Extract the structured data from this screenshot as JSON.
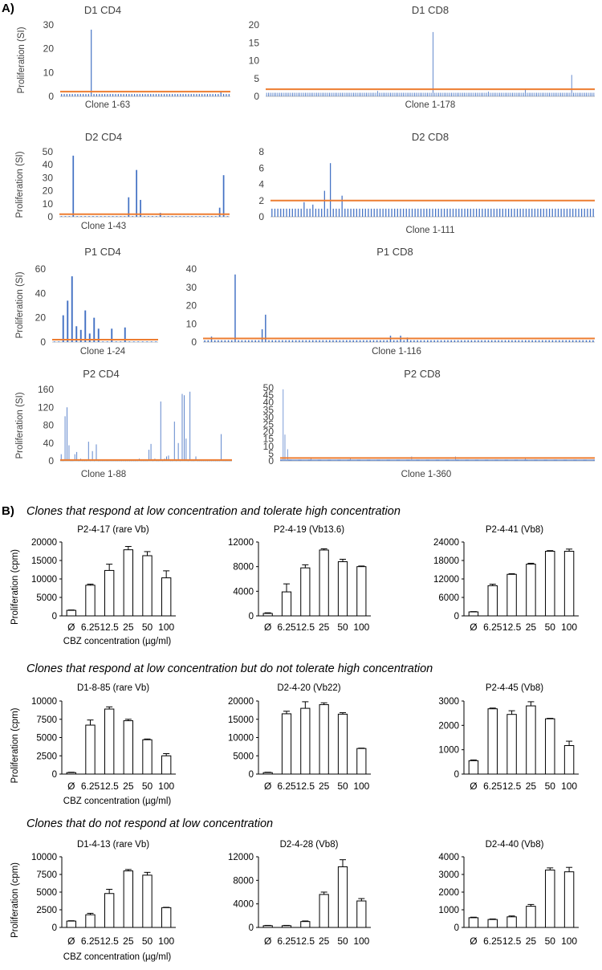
{
  "figure": {
    "panel_a_label": "A)",
    "panel_b_label": "B)",
    "colors": {
      "bar_a": "#4472c4",
      "threshold": "#ed7d31",
      "axis": "#bfbfbf",
      "text": "#404040",
      "bar_b_fill": "#ffffff",
      "bar_b_stroke": "#000000"
    }
  },
  "chart_data": [
    {
      "id": "D1-CD4",
      "type": "bar",
      "panel": "A",
      "title": "D1 CD4",
      "xlabel": "Clone 1-63",
      "ylabel": "Proliferation (SI)",
      "ylim": [
        0,
        30
      ],
      "yticks": [
        0,
        10,
        20,
        30
      ],
      "threshold": 2,
      "n": 63,
      "baseline": 1,
      "peaks": [
        [
          11,
          28
        ],
        [
          59,
          2
        ]
      ]
    },
    {
      "id": "D1-CD8",
      "type": "bar",
      "panel": "A",
      "title": "D1 CD8",
      "xlabel": "Clone 1-178",
      "ylabel": "",
      "ylim": [
        0,
        20
      ],
      "yticks": [
        0,
        5,
        10,
        15,
        20
      ],
      "threshold": 2,
      "n": 178,
      "baseline": 1,
      "peaks": [
        [
          90,
          18
        ],
        [
          165,
          6
        ],
        [
          60,
          1.5
        ],
        [
          120,
          1.3
        ],
        [
          140,
          1.8
        ]
      ]
    },
    {
      "id": "D2-CD4",
      "type": "bar",
      "panel": "A",
      "title": "D2 CD4",
      "xlabel": "Clone 1-43",
      "ylabel": "Proliferation (SI)",
      "ylim": [
        0,
        50
      ],
      "yticks": [
        0,
        10,
        20,
        30,
        40,
        50
      ],
      "threshold": 2,
      "n": 43,
      "baseline": 0.5,
      "peaks": [
        [
          3,
          47
        ],
        [
          17,
          15
        ],
        [
          19,
          36
        ],
        [
          20,
          13
        ],
        [
          40,
          7
        ],
        [
          41,
          32
        ],
        [
          25,
          3
        ]
      ]
    },
    {
      "id": "D2-CD8",
      "type": "bar",
      "panel": "A",
      "title": "D2 CD8",
      "xlabel": "Clone 1-111",
      "ylabel": "",
      "ylim": [
        0,
        8
      ],
      "yticks": [
        0,
        2,
        4,
        6,
        8
      ],
      "threshold": 2,
      "n": 111,
      "baseline": 1,
      "peaks": [
        [
          18,
          3.2
        ],
        [
          20,
          6.6
        ],
        [
          24,
          2.6
        ],
        [
          11,
          1.8
        ],
        [
          14,
          1.5
        ]
      ]
    },
    {
      "id": "P1-CD4",
      "type": "bar",
      "panel": "A",
      "title": "P1 CD4",
      "xlabel": "Clone 1-24",
      "ylabel": "Proliferation (SI)",
      "ylim": [
        0,
        60
      ],
      "yticks": [
        0,
        20,
        40,
        60
      ],
      "threshold": 2,
      "n": 24,
      "baseline": 0.5,
      "peaks": [
        [
          2,
          22
        ],
        [
          3,
          34
        ],
        [
          4,
          54
        ],
        [
          5,
          13
        ],
        [
          6,
          10
        ],
        [
          7,
          26
        ],
        [
          8,
          7
        ],
        [
          9,
          20
        ],
        [
          10,
          11
        ],
        [
          13,
          11
        ],
        [
          16,
          12
        ]
      ]
    },
    {
      "id": "P1-CD8",
      "type": "bar",
      "panel": "A",
      "title": "P1 CD8",
      "xlabel": "Clone 1-116",
      "ylabel": "",
      "ylim": [
        0,
        40
      ],
      "yticks": [
        0,
        10,
        20,
        30,
        40
      ],
      "threshold": 2,
      "n": 116,
      "baseline": 1,
      "peaks": [
        [
          9,
          37
        ],
        [
          17,
          7
        ],
        [
          18,
          15
        ],
        [
          2,
          3
        ],
        [
          55,
          3.5
        ],
        [
          58,
          3.5
        ],
        [
          60,
          2.5
        ]
      ]
    },
    {
      "id": "P2-CD4",
      "type": "bar",
      "panel": "A",
      "title": "P2 CD4",
      "xlabel": "Clone 1-88",
      "ylabel": "Proliferation (SI)",
      "ylim": [
        0,
        160
      ],
      "yticks": [
        0,
        40,
        80,
        120,
        160
      ],
      "threshold": 2,
      "n": 88,
      "baseline": 0.5,
      "peaks": [
        [
          0,
          15
        ],
        [
          2,
          100
        ],
        [
          3,
          120
        ],
        [
          4,
          35
        ],
        [
          7,
          15
        ],
        [
          8,
          20
        ],
        [
          10,
          5
        ],
        [
          14,
          43
        ],
        [
          16,
          22
        ],
        [
          18,
          37
        ],
        [
          40,
          5
        ],
        [
          45,
          25
        ],
        [
          46,
          38
        ],
        [
          48,
          5
        ],
        [
          51,
          133
        ],
        [
          53,
          5
        ],
        [
          54,
          10
        ],
        [
          55,
          12
        ],
        [
          58,
          88
        ],
        [
          60,
          40
        ],
        [
          62,
          150
        ],
        [
          63,
          147
        ],
        [
          64,
          50
        ],
        [
          66,
          155
        ],
        [
          69,
          10
        ],
        [
          82,
          60
        ]
      ]
    },
    {
      "id": "P2-CD8",
      "type": "bar",
      "panel": "A",
      "title": "P2 CD8",
      "xlabel": "Clone 1-360",
      "ylabel": "",
      "ylim": [
        0,
        50
      ],
      "yticks": [
        0,
        5,
        10,
        15,
        20,
        25,
        30,
        35,
        40,
        45,
        50
      ],
      "threshold": 2,
      "n": 360,
      "baseline": 1,
      "peaks": [
        [
          3,
          49
        ],
        [
          5,
          18
        ],
        [
          8,
          8
        ],
        [
          35,
          2.5
        ],
        [
          80,
          2
        ],
        [
          150,
          3
        ],
        [
          200,
          3
        ],
        [
          280,
          2.5
        ]
      ]
    },
    {
      "id": "P2-4-17",
      "type": "bar",
      "panel": "B",
      "title": "P2-4-17 (rare Vb)",
      "ylabel": "Proliferation (cpm)",
      "xlabel": "CBZ concentration (µg/ml)",
      "categories": [
        "Ø",
        "6.25",
        "12.5",
        "25",
        "50",
        "100"
      ],
      "values": [
        1500,
        8300,
        12300,
        17900,
        16300,
        10300
      ],
      "errors": [
        100,
        300,
        1700,
        900,
        1100,
        1900
      ],
      "ylim": [
        0,
        20000
      ],
      "yticks": [
        0,
        5000,
        10000,
        15000,
        20000
      ]
    },
    {
      "id": "P2-4-19",
      "type": "bar",
      "panel": "B",
      "title": "P2-4-19 (Vb13.6)",
      "ylabel": "",
      "xlabel": "",
      "categories": [
        "Ø",
        "6.25",
        "12.5",
        "25",
        "50",
        "100"
      ],
      "values": [
        400,
        3900,
        7800,
        10700,
        8800,
        8000
      ],
      "errors": [
        100,
        1300,
        500,
        200,
        400,
        100
      ],
      "ylim": [
        0,
        12000
      ],
      "yticks": [
        0,
        4000,
        8000,
        12000
      ]
    },
    {
      "id": "P2-4-41",
      "type": "bar",
      "panel": "B",
      "title": "P2-4-41 (Vb8)",
      "ylabel": "",
      "xlabel": "",
      "categories": [
        "Ø",
        "6.25",
        "12.5",
        "25",
        "50",
        "100"
      ],
      "values": [
        1300,
        9800,
        13500,
        16800,
        21000,
        21000
      ],
      "errors": [
        100,
        500,
        200,
        300,
        200,
        700
      ],
      "ylim": [
        0,
        24000
      ],
      "yticks": [
        0,
        6000,
        12000,
        18000,
        24000
      ]
    },
    {
      "id": "D1-8-85",
      "type": "bar",
      "panel": "B",
      "title": "D1-8-85 (rare Vb)",
      "ylabel": "Proliferation (cpm)",
      "xlabel": "CBZ concentration (µg/ml)",
      "categories": [
        "Ø",
        "6.25",
        "12.5",
        "25",
        "50",
        "100"
      ],
      "values": [
        200,
        6700,
        8900,
        7300,
        4700,
        2500
      ],
      "errors": [
        50,
        700,
        300,
        200,
        100,
        300
      ],
      "ylim": [
        0,
        10000
      ],
      "yticks": [
        0,
        2500,
        5000,
        7500,
        10000
      ]
    },
    {
      "id": "D2-4-20",
      "type": "bar",
      "panel": "B",
      "title": "D2-4-20 (Vb22)",
      "ylabel": "",
      "xlabel": "",
      "categories": [
        "Ø",
        "6.25",
        "12.5",
        "25",
        "50",
        "100"
      ],
      "values": [
        400,
        16500,
        18000,
        19000,
        16400,
        7000
      ],
      "errors": [
        100,
        700,
        1800,
        500,
        400,
        100
      ],
      "ylim": [
        0,
        20000
      ],
      "yticks": [
        0,
        5000,
        10000,
        15000,
        20000
      ]
    },
    {
      "id": "P2-4-45",
      "type": "bar",
      "panel": "B",
      "title": "P2-4-45 (Vb8)",
      "ylabel": "",
      "xlabel": "",
      "categories": [
        "Ø",
        "6.25",
        "12.5",
        "25",
        "50",
        "100"
      ],
      "values": [
        550,
        2680,
        2450,
        2800,
        2270,
        1170
      ],
      "errors": [
        30,
        30,
        150,
        170,
        20,
        180
      ],
      "ylim": [
        0,
        3000
      ],
      "yticks": [
        0,
        1000,
        2000,
        3000
      ]
    },
    {
      "id": "D1-4-13",
      "type": "bar",
      "panel": "B",
      "title": "D1-4-13 (rare Vb)",
      "ylabel": "Proliferation (cpm)",
      "xlabel": "CBZ concentration (µg/ml)",
      "categories": [
        "Ø",
        "6.25",
        "12.5",
        "25",
        "50",
        "100"
      ],
      "values": [
        900,
        1800,
        4800,
        8000,
        7400,
        2800
      ],
      "errors": [
        50,
        200,
        600,
        200,
        400,
        50
      ],
      "ylim": [
        0,
        10000
      ],
      "yticks": [
        0,
        2500,
        5000,
        7500,
        10000
      ]
    },
    {
      "id": "D2-4-28",
      "type": "bar",
      "panel": "B",
      "title": "D2-4-28 (Vb8)",
      "ylabel": "",
      "xlabel": "",
      "categories": [
        "Ø",
        "6.25",
        "12.5",
        "25",
        "50",
        "100"
      ],
      "values": [
        300,
        300,
        1000,
        5600,
        10300,
        4500
      ],
      "errors": [
        50,
        50,
        100,
        400,
        1200,
        400
      ],
      "ylim": [
        0,
        12000
      ],
      "yticks": [
        0,
        4000,
        8000,
        12000
      ]
    },
    {
      "id": "D2-4-40",
      "type": "bar",
      "panel": "B",
      "title": "D2-4-40 (Vb8)",
      "ylabel": "",
      "xlabel": "",
      "categories": [
        "Ø",
        "6.25",
        "12.5",
        "25",
        "50",
        "100"
      ],
      "values": [
        550,
        450,
        600,
        1200,
        3250,
        3150
      ],
      "errors": [
        30,
        30,
        50,
        100,
        120,
        250
      ],
      "ylim": [
        0,
        4000
      ],
      "yticks": [
        0,
        1000,
        2000,
        3000,
        4000
      ]
    }
  ],
  "panel_b_headings": [
    "Clones that respond at low concentration and tolerate high concentration",
    "Clones that respond at low concentration but do not tolerate high concentration",
    "Clones that do not respond at low concentration"
  ]
}
